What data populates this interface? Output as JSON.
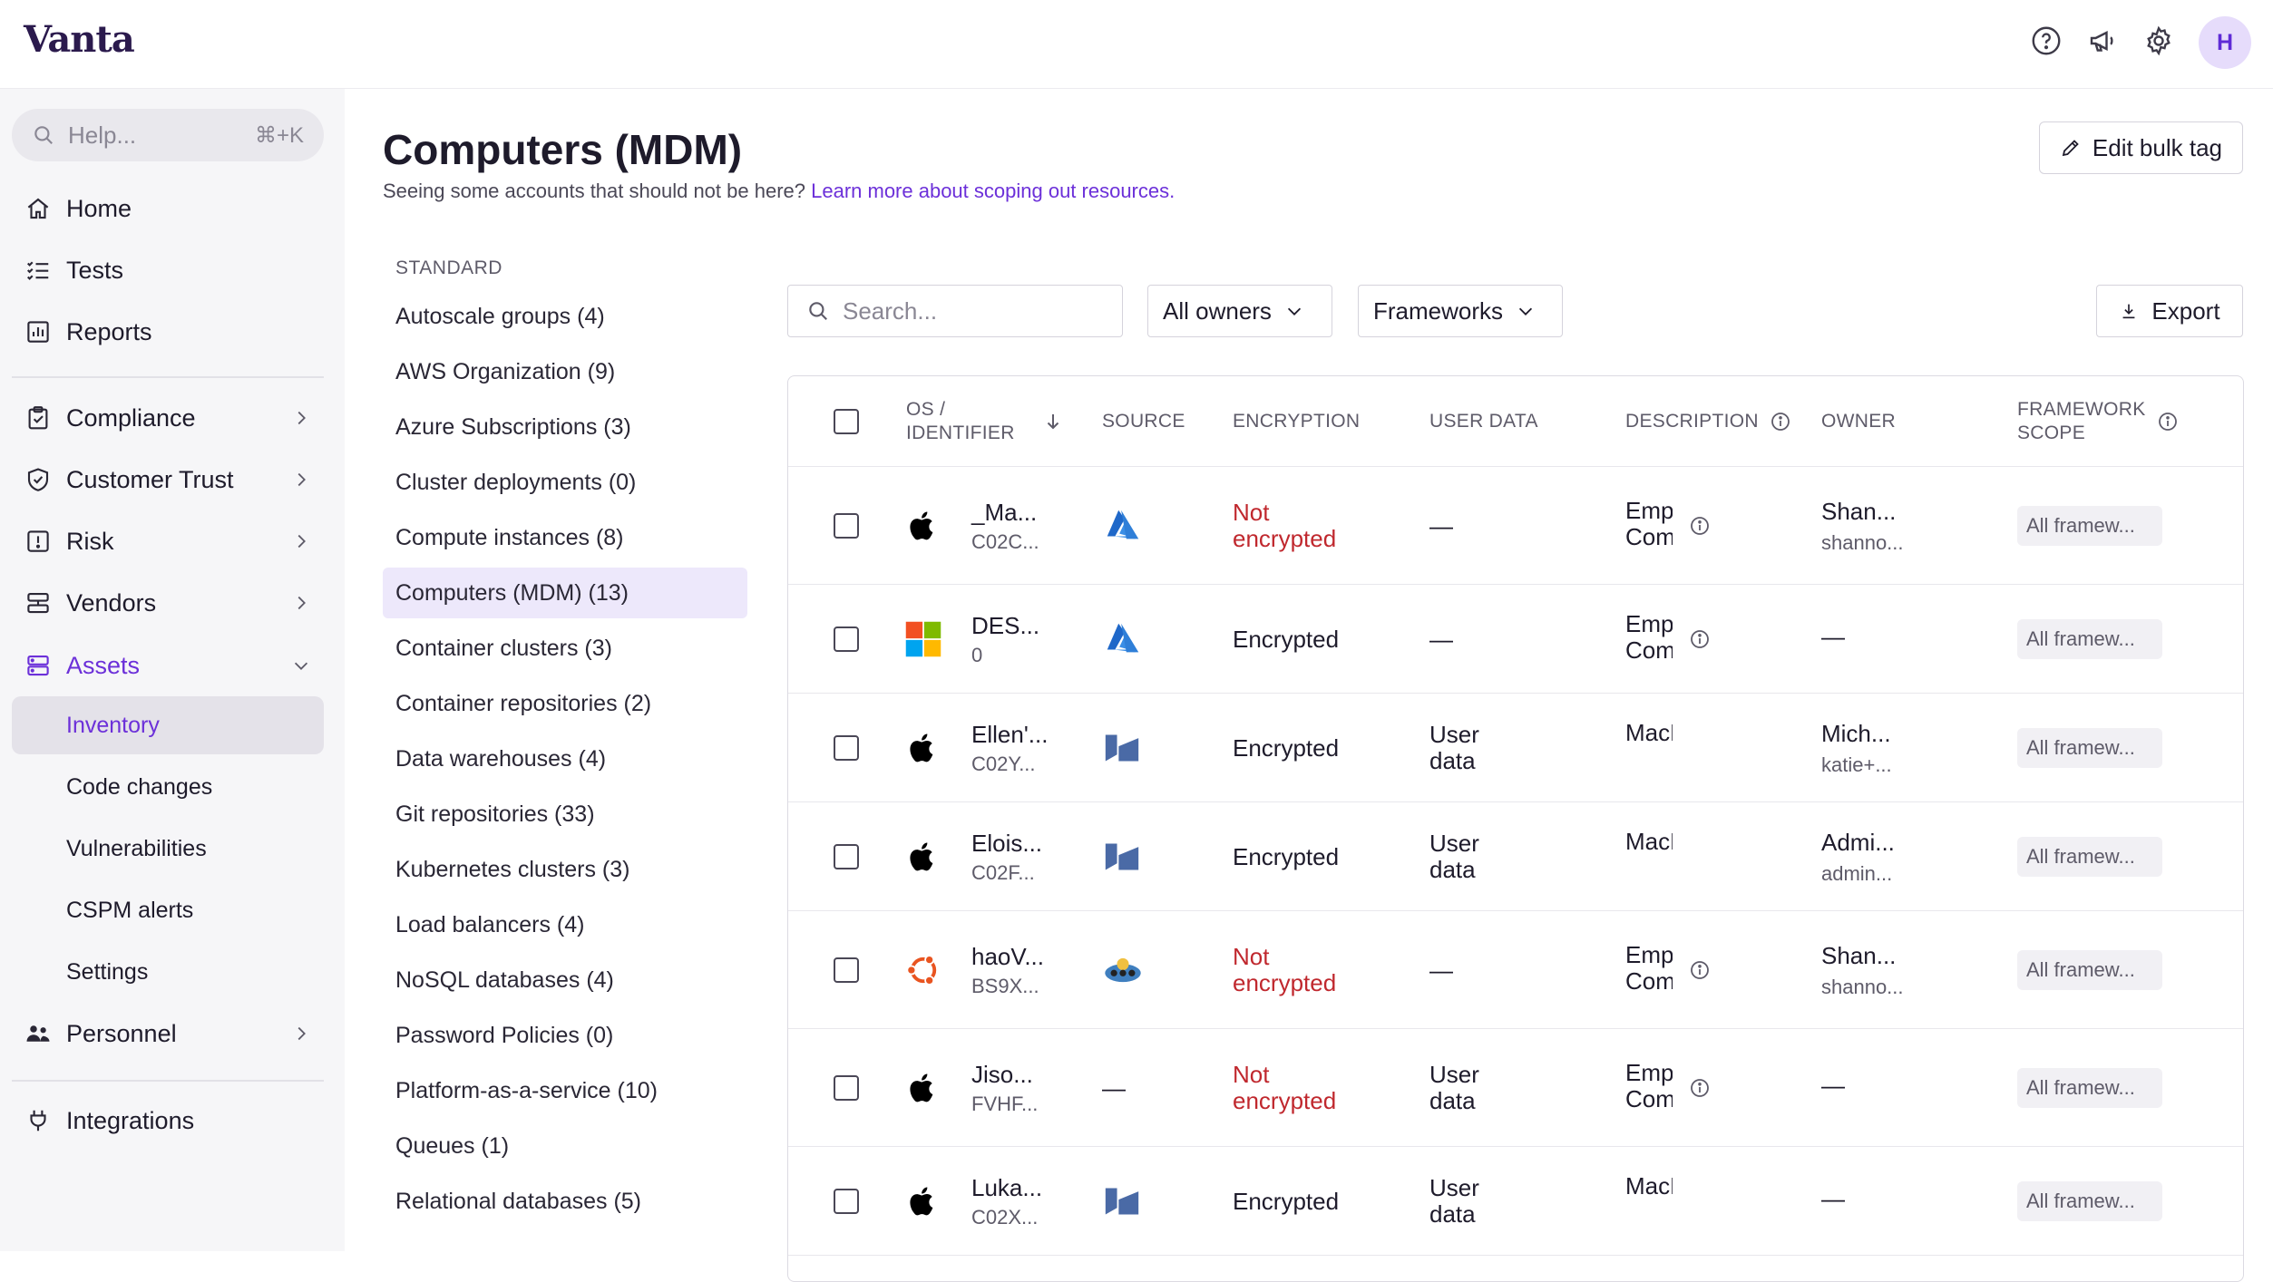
{
  "app": {
    "logo": "Vanta",
    "avatar_initial": "H"
  },
  "sidebar": {
    "search_placeholder": "Help...",
    "search_shortcut": "⌘+K",
    "items": [
      {
        "label": "Home"
      },
      {
        "label": "Tests"
      },
      {
        "label": "Reports"
      },
      {
        "label": "Compliance"
      },
      {
        "label": "Customer Trust"
      },
      {
        "label": "Risk"
      },
      {
        "label": "Vendors"
      },
      {
        "label": "Assets"
      },
      {
        "label": "Personnel"
      },
      {
        "label": "Integrations"
      }
    ],
    "asset_subitems": [
      "Inventory",
      "Code changes",
      "Vulnerabilities",
      "CSPM alerts",
      "Settings"
    ]
  },
  "page": {
    "title": "Computers (MDM)",
    "subtitle": "Seeing some accounts that should not be here? ",
    "subtitle_link": "Learn more about scoping out resources.",
    "bulk_tag_button": "Edit bulk tag"
  },
  "categories": {
    "heading": "STANDARD",
    "items": [
      "Autoscale groups (4)",
      "AWS Organization (9)",
      "Azure Subscriptions (3)",
      "Cluster deployments (0)",
      "Compute instances (8)",
      "Computers (MDM) (13)",
      "Container clusters (3)",
      "Container repositories (2)",
      "Data warehouses (4)",
      "Git repositories (33)",
      "Kubernetes clusters (3)",
      "Load balancers (4)",
      "NoSQL databases (4)",
      "Password Policies (0)",
      "Platform-as-a-service (10)",
      "Queues (1)",
      "Relational databases (5)"
    ]
  },
  "filters": {
    "search_placeholder": "Search...",
    "owners": "All owners",
    "frameworks": "Frameworks",
    "export": "Export"
  },
  "table": {
    "headers": {
      "os_identifier_1": "OS /",
      "os_identifier_2": "IDENTIFIER",
      "source": "SOURCE",
      "encryption": "ENCRYPTION",
      "user_data": "USER DATA",
      "description": "DESCRIPTION",
      "owner": "OWNER",
      "framework_1": "FRAMEWORK",
      "framework_2": "SCOPE"
    },
    "rows": [
      {
        "os": "apple",
        "name": "_Ma...",
        "id": "C02C...",
        "source": "azure",
        "enc1": "Not",
        "enc2": "encrypted",
        "user1": "—",
        "user2": "",
        "desc": "Emp Com",
        "desc_info": true,
        "owner": "Shan...",
        "owner_sub": "shanno...",
        "scope": "All framew..."
      },
      {
        "os": "windows",
        "name": "DES...",
        "id": "0",
        "source": "azure",
        "enc1": "Encrypted",
        "enc2": "",
        "user1": "—",
        "user2": "",
        "desc": "Emp Com",
        "desc_info": true,
        "owner": "—",
        "owner_sub": "",
        "scope": "All framew..."
      },
      {
        "os": "apple",
        "name": "Ellen'...",
        "id": "C02Y...",
        "source": "kandji",
        "enc1": "Encrypted",
        "enc2": "",
        "user1": "User",
        "user2": "data",
        "desc": "MacBoc",
        "desc_info": false,
        "owner": "Mich...",
        "owner_sub": "katie+...",
        "scope": "All framew..."
      },
      {
        "os": "apple",
        "name": "Elois...",
        "id": "C02F...",
        "source": "kandji",
        "enc1": "Encrypted",
        "enc2": "",
        "user1": "User",
        "user2": "data",
        "desc": "MacBoc",
        "desc_info": false,
        "owner": "Admi...",
        "owner_sub": "admin...",
        "scope": "All framew..."
      },
      {
        "os": "ubuntu",
        "name": "haoV...",
        "id": "BS9X...",
        "source": "agent",
        "enc1": "Not",
        "enc2": "encrypted",
        "user1": "—",
        "user2": "",
        "desc": "Emp Com",
        "desc_info": true,
        "owner": "Shan...",
        "owner_sub": "shanno...",
        "scope": "All framew..."
      },
      {
        "os": "apple",
        "name": "Jiso...",
        "id": "FVHF...",
        "source": "none",
        "enc1": "Not",
        "enc2": "encrypted",
        "user1": "User",
        "user2": "data",
        "desc": "Emp Com",
        "desc_info": true,
        "owner": "—",
        "owner_sub": "",
        "scope": "All framew..."
      },
      {
        "os": "apple",
        "name": "Luka...",
        "id": "C02X...",
        "source": "kandji",
        "enc1": "Encrypted",
        "enc2": "",
        "user1": "User",
        "user2": "data",
        "desc": "MacBoc",
        "desc_info": false,
        "owner": "—",
        "owner_sub": "",
        "scope": "All framew..."
      }
    ]
  },
  "colors": {
    "accent": "#6c30d9",
    "danger": "#c0282e",
    "azure": "#2f6fd0",
    "kandji": "#4b6ba7"
  }
}
